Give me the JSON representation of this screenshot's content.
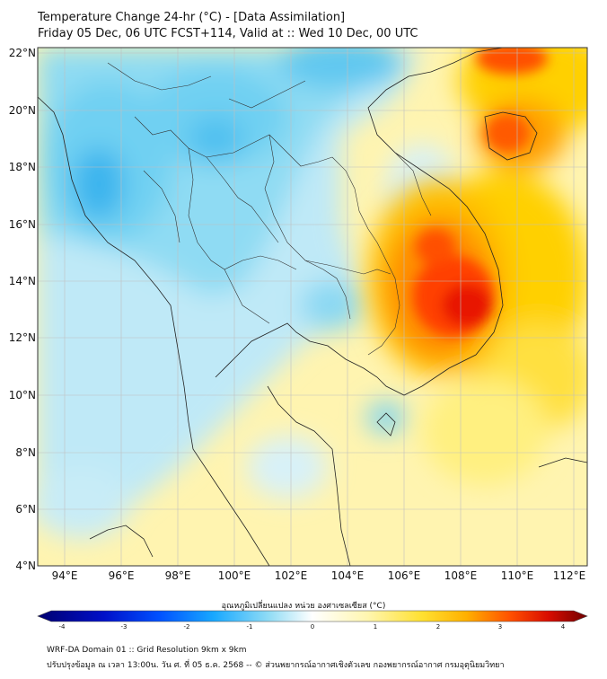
{
  "header": {
    "title_line1": "Temperature Change 24-hr (°C) - [Data Assimilation]",
    "title_line2": "Friday 05 Dec, 06 UTC FCST+114, Valid at :: Wed 10 Dec, 00 UTC"
  },
  "map": {
    "lat_labels": [
      "22°N",
      "20°N",
      "18°N",
      "16°N",
      "14°N",
      "12°N",
      "10°N",
      "8°N",
      "6°N",
      "4°N"
    ],
    "lon_labels": [
      "94°E",
      "96°E",
      "98°E",
      "100°E",
      "102°E",
      "104°E",
      "106°E",
      "108°E",
      "110°E",
      "112°E"
    ]
  },
  "colorbar": {
    "title": "อุณหภูมิเปลี่ยนแปลง หน่วย องศาเซลเซียส (°C)",
    "ticks": [
      "-4",
      "-3",
      "-2",
      "-1",
      "0",
      "1",
      "2",
      "3",
      "4"
    ],
    "colors": [
      "#000080",
      "#0010c8",
      "#0050ff",
      "#18a8ff",
      "#5ad2f5",
      "#b4e8f8",
      "#f5fbff",
      "#ffffff",
      "#fff8c8",
      "#ffee78",
      "#ffd200",
      "#ffa000",
      "#ff5000",
      "#e01000",
      "#a00000",
      "#6a0000"
    ]
  },
  "footer": {
    "line1": "WRF-DA Domain 01 :: Grid Resolution 9km x 9km",
    "line2": "ปรับปรุงข้อมูล ณ เวลา 13:00น. วัน ศ. ที่ 05 ธ.ค. 2568 -- © ส่วนพยากรณ์อากาศเชิงตัวเลข กองพยากรณ์อากาศ กรมอุตุนิยมวิทยา"
  }
}
